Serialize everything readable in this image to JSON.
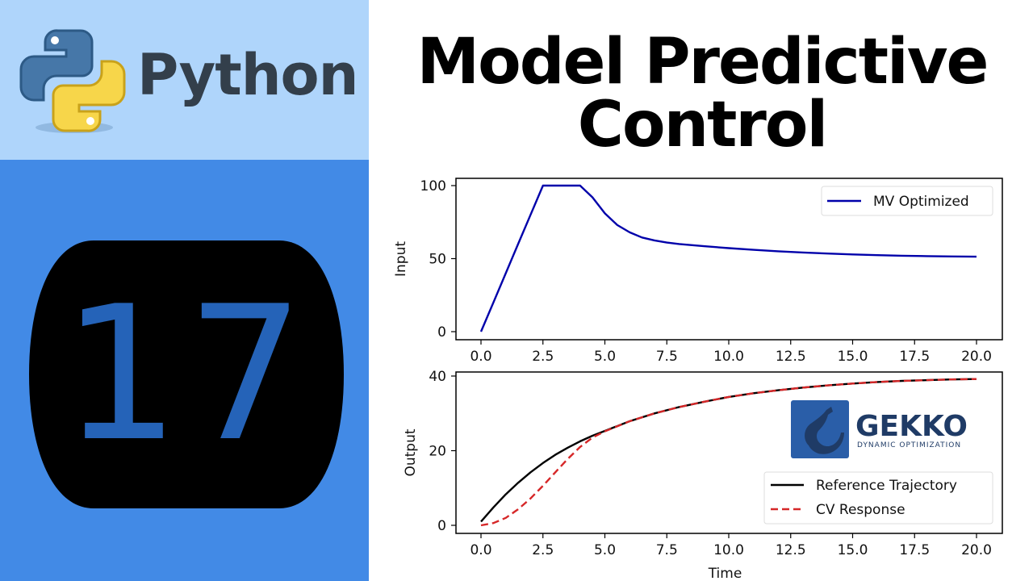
{
  "left_panel": {
    "brand_text": "Python",
    "episode_number": "17",
    "colors": {
      "top_bg": "#afd5fb",
      "bottom_bg": "#428ae6",
      "badge_bg": "#000000",
      "badge_digit": "#2563b8",
      "brand_text": "#333f4b"
    }
  },
  "title": {
    "line1": "Model Predictive",
    "line2": "Control"
  },
  "gekko_logo": {
    "name": "GEKKO",
    "tagline": "DYNAMIC OPTIMIZATION",
    "colors": {
      "tile": "#2a5ea8",
      "text": "#1f3b66"
    }
  },
  "chart_data": [
    {
      "type": "line",
      "title": "",
      "xlabel": "",
      "ylabel": "Input",
      "xlim": [
        -1.0,
        20.95
      ],
      "ylim": [
        -5,
        105
      ],
      "xticks": [
        "0.0",
        "2.5",
        "5.0",
        "7.5",
        "10.0",
        "12.5",
        "15.0",
        "17.5",
        "20.0"
      ],
      "yticks": [
        "0",
        "50",
        "100"
      ],
      "grid": false,
      "legend_position": "upper right",
      "x": [
        0,
        0.5,
        1,
        1.5,
        2,
        2.5,
        3,
        3.5,
        4,
        4.5,
        5,
        5.5,
        6,
        6.5,
        7,
        7.5,
        8,
        9,
        10,
        11,
        12,
        13,
        14,
        15,
        16,
        17,
        18,
        19,
        20
      ],
      "series": [
        {
          "name": "MV Optimized",
          "color": "#0000aa",
          "style": "solid",
          "values": [
            0,
            20,
            40,
            60,
            80,
            100,
            100,
            100,
            100,
            92,
            81,
            73,
            68,
            64.5,
            62.5,
            61,
            60,
            58.5,
            57.2,
            56,
            55,
            54.2,
            53.5,
            52.9,
            52.4,
            52,
            51.7,
            51.5,
            51.3
          ]
        }
      ]
    },
    {
      "type": "line",
      "title": "",
      "xlabel": "Time",
      "ylabel": "Output",
      "xlim": [
        -1.0,
        20.95
      ],
      "ylim": [
        -2,
        41
      ],
      "xticks": [
        "0.0",
        "2.5",
        "5.0",
        "7.5",
        "10.0",
        "12.5",
        "15.0",
        "17.5",
        "20.0"
      ],
      "yticks": [
        "0",
        "20",
        "40"
      ],
      "grid": false,
      "legend_position": "lower right",
      "x": [
        0,
        0.5,
        1,
        1.5,
        2,
        2.5,
        3,
        3.5,
        4,
        4.5,
        5,
        6,
        7,
        8,
        9,
        10,
        11,
        12,
        13,
        14,
        15,
        16,
        17,
        18,
        19,
        20
      ],
      "series": [
        {
          "name": "Reference Trajectory",
          "color": "#000000",
          "style": "solid",
          "values": [
            1,
            4.8,
            8.3,
            11.4,
            14.2,
            16.7,
            18.9,
            20.8,
            22.5,
            24,
            25.3,
            27.9,
            30,
            31.7,
            33.1,
            34.4,
            35.4,
            36.2,
            36.9,
            37.5,
            38,
            38.4,
            38.7,
            38.9,
            39.1,
            39.2
          ]
        },
        {
          "name": "CV Response",
          "color": "#d62728",
          "style": "dashed",
          "values": [
            0,
            0.6,
            2,
            4.3,
            7.2,
            10.6,
            14.2,
            17.8,
            21,
            23.5,
            25.2,
            27.9,
            30,
            31.7,
            33.1,
            34.4,
            35.4,
            36.2,
            36.9,
            37.5,
            38,
            38.4,
            38.7,
            38.9,
            39.1,
            39.2
          ]
        }
      ]
    }
  ]
}
